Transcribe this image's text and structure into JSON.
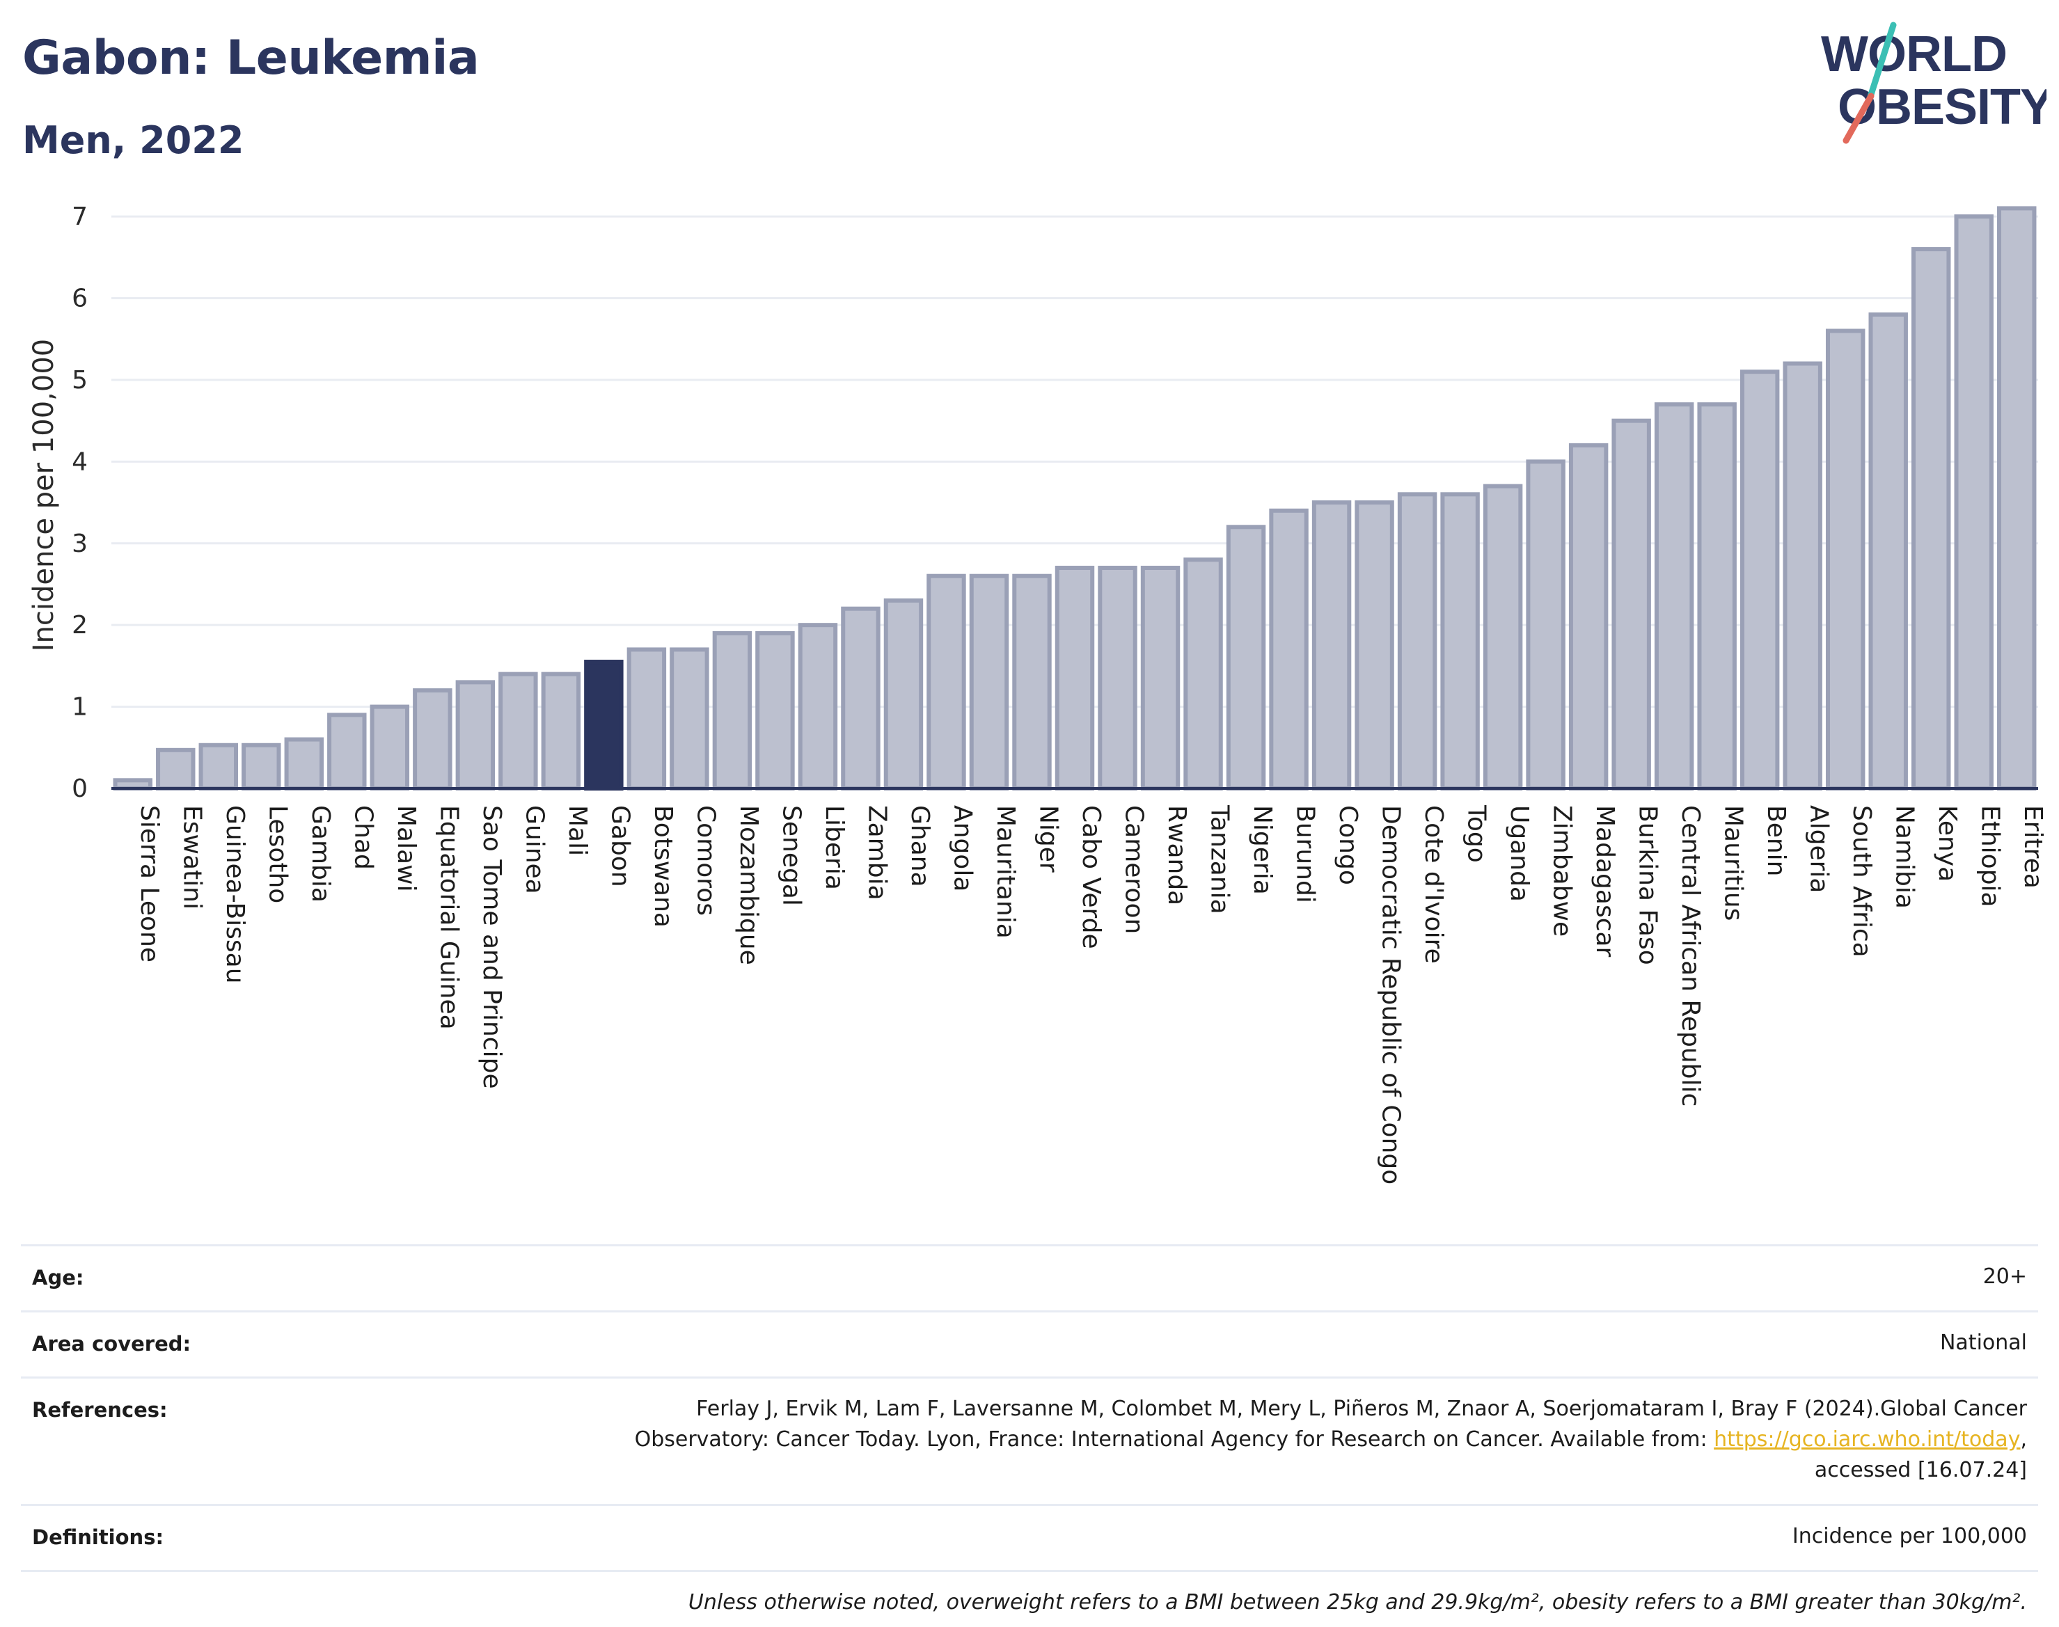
{
  "header": {
    "title": "Gabon: Leukemia",
    "subtitle": "Men, 2022"
  },
  "logo": {
    "line1": "WORLD",
    "line2": "OBESITY",
    "colors": {
      "text": "#2b355e",
      "slash_teal": "#3bbfb4",
      "slash_red": "#e2695b"
    }
  },
  "chart_data": {
    "type": "bar",
    "title": "",
    "xlabel": "",
    "ylabel": "Incidence per 100,000",
    "ylim": [
      0,
      7.35
    ],
    "yticks": [
      0,
      1,
      2,
      3,
      4,
      5,
      6,
      7
    ],
    "grid": true,
    "highlight": "Gabon",
    "colors": {
      "bar": "#bcc0cf",
      "bar_edge": "#9aa0b6",
      "highlight": "#2b355e",
      "grid": "#e9ecf2",
      "axis": "#2b355e"
    },
    "categories": [
      "Sierra Leone",
      "Eswatini",
      "Guinea-Bissau",
      "Lesotho",
      "Gambia",
      "Chad",
      "Malawi",
      "Equatorial Guinea",
      "Sao Tome and Principe",
      "Guinea",
      "Mali",
      "Gabon",
      "Botswana",
      "Comoros",
      "Mozambique",
      "Senegal",
      "Liberia",
      "Zambia",
      "Ghana",
      "Angola",
      "Mauritania",
      "Niger",
      "Cabo Verde",
      "Cameroon",
      "Rwanda",
      "Tanzania",
      "Nigeria",
      "Burundi",
      "Congo",
      "Democratic Republic of Congo",
      "Cote d'Ivoire",
      "Togo",
      "Uganda",
      "Zimbabwe",
      "Madagascar",
      "Burkina Faso",
      "Central African Republic",
      "Mauritius",
      "Benin",
      "Algeria",
      "South Africa",
      "Namibia",
      "Kenya",
      "Ethiopia",
      "Eritrea"
    ],
    "values": [
      0.1,
      0.47,
      0.53,
      0.53,
      0.6,
      0.9,
      1.0,
      1.2,
      1.3,
      1.4,
      1.4,
      1.55,
      1.7,
      1.7,
      1.9,
      1.9,
      2.0,
      2.2,
      2.3,
      2.6,
      2.6,
      2.6,
      2.7,
      2.7,
      2.7,
      2.8,
      3.2,
      3.4,
      3.5,
      3.5,
      3.6,
      3.6,
      3.7,
      4.0,
      4.2,
      4.5,
      4.7,
      4.7,
      5.1,
      5.2,
      5.6,
      5.8,
      6.6,
      7.0,
      7.1
    ]
  },
  "meta": {
    "age_label": "Age:",
    "age_value": "20+",
    "area_label": "Area covered:",
    "area_value": "National",
    "references_label": "References:",
    "references_line1": "Ferlay J, Ervik M, Lam F, Laversanne M, Colombet M, Mery L, Piñeros M, Znaor A, Soerjomataram I, Bray F (2024).Global Cancer",
    "references_line2_pre": "Observatory: Cancer Today. Lyon, France: International Agency for Research on Cancer. Available from: ",
    "references_link": "https://gco.iarc.who.int/today",
    "references_line2_post": ",",
    "references_line3": "accessed [16.07.24]",
    "definitions_label": "Definitions:",
    "definitions_value": "Incidence per 100,000",
    "note": "Unless otherwise noted, overweight refers to a BMI between 25kg and 29.9kg/m², obesity refers to a BMI greater than 30kg/m²."
  }
}
